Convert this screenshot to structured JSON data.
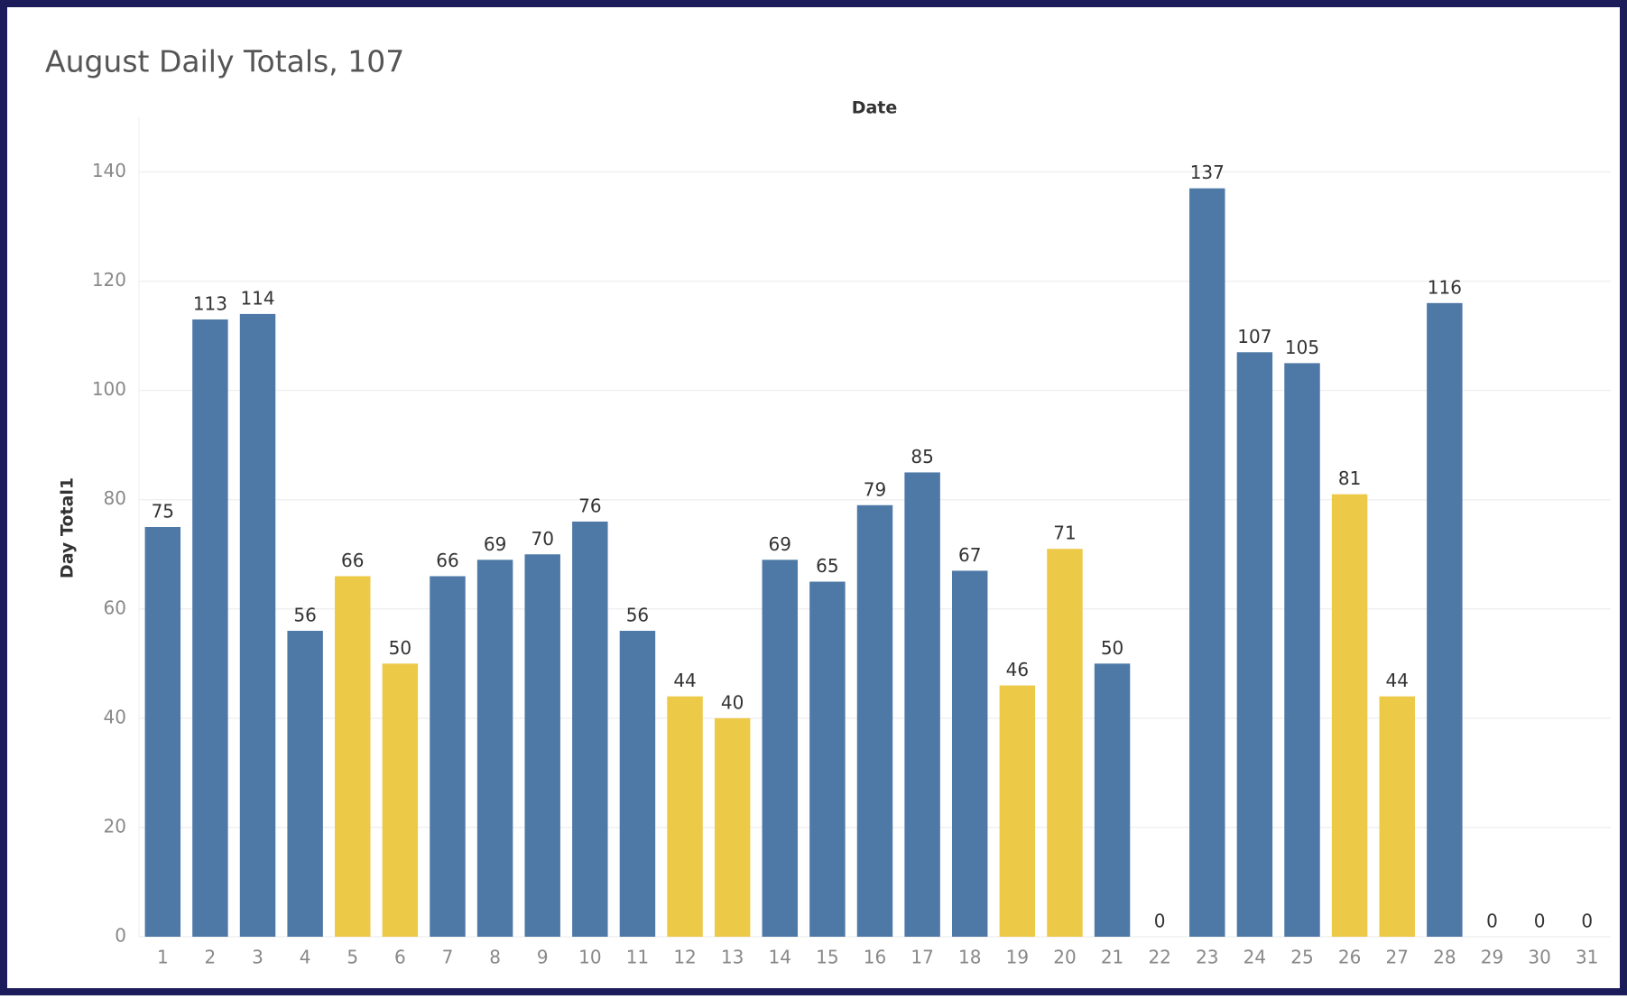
{
  "chart_data": {
    "type": "bar",
    "title": "August Daily Totals, 107",
    "x_label": "Date",
    "y_label": "Day Total1",
    "categories": [
      "1",
      "2",
      "3",
      "4",
      "5",
      "6",
      "7",
      "8",
      "9",
      "10",
      "11",
      "12",
      "13",
      "14",
      "15",
      "16",
      "17",
      "18",
      "19",
      "20",
      "21",
      "22",
      "23",
      "24",
      "25",
      "26",
      "27",
      "28",
      "29",
      "30",
      "31"
    ],
    "values": [
      75,
      113,
      114,
      56,
      66,
      50,
      66,
      69,
      70,
      76,
      56,
      44,
      40,
      69,
      65,
      79,
      85,
      67,
      46,
      71,
      50,
      0,
      137,
      107,
      105,
      81,
      44,
      116,
      0,
      0,
      0
    ],
    "colors": [
      "#4e79a7",
      "#4e79a7",
      "#4e79a7",
      "#4e79a7",
      "#edc948",
      "#edc948",
      "#4e79a7",
      "#4e79a7",
      "#4e79a7",
      "#4e79a7",
      "#4e79a7",
      "#edc948",
      "#edc948",
      "#4e79a7",
      "#4e79a7",
      "#4e79a7",
      "#4e79a7",
      "#4e79a7",
      "#edc948",
      "#edc948",
      "#4e79a7",
      "#4e79a7",
      "#4e79a7",
      "#4e79a7",
      "#4e79a7",
      "#edc948",
      "#edc948",
      "#4e79a7",
      "#4e79a7",
      "#4e79a7",
      "#4e79a7"
    ],
    "ylim": [
      0,
      150
    ],
    "yticks": [
      0,
      20,
      40,
      60,
      80,
      100,
      120,
      140
    ],
    "grid": true
  }
}
